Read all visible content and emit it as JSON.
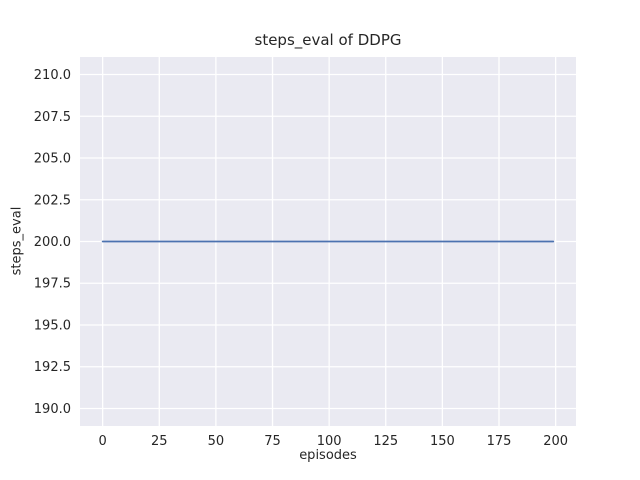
{
  "figure": {
    "title": "steps_eval of DDPG"
  },
  "chart_data": {
    "type": "line",
    "title": "steps_eval of DDPG",
    "xlabel": "episodes",
    "ylabel": "steps_eval",
    "style": "seaborn-darkgrid",
    "grid": true,
    "legend": "none",
    "xlim": [
      -10,
      209
    ],
    "ylim": [
      188.95,
      211.05
    ],
    "xticks": [
      0,
      25,
      50,
      75,
      100,
      125,
      150,
      175,
      200
    ],
    "xtick_labels": [
      "0",
      "25",
      "50",
      "75",
      "100",
      "125",
      "150",
      "175",
      "200"
    ],
    "yticks": [
      190.0,
      192.5,
      195.0,
      197.5,
      200.0,
      202.5,
      205.0,
      207.5,
      210.0
    ],
    "ytick_labels": [
      "190.0",
      "192.5",
      "195.0",
      "197.5",
      "200.0",
      "202.5",
      "205.0",
      "207.5",
      "210.0"
    ],
    "series": [
      {
        "name": "DDPG steps_eval",
        "x": [
          0,
          199
        ],
        "y": [
          200,
          200
        ],
        "description": "constant value 200 for every episode 0 through 199",
        "color": "#4c72b0",
        "linewidth": 1.8
      }
    ],
    "colors": {
      "figure_bg": "#ffffff",
      "plot_bg": "#eaeaf2",
      "gridline": "#ffffff",
      "text": "#262626",
      "line": "#4c72b0"
    }
  }
}
